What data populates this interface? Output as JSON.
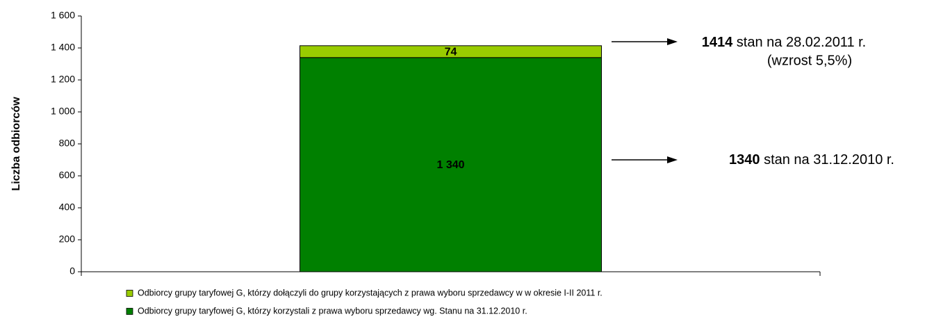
{
  "chart_data": {
    "type": "stacked_bar",
    "y_label": "Liczba odbiorców",
    "categories": [
      null
    ],
    "series": [
      {
        "name": "Odbiorcy grupy taryfowej G, którzy korzystali z prawa wyboru sprzedawcy wg. Stanu na 31.12.2010 r.",
        "color": "#008000",
        "values": [
          1340
        ],
        "value_labels": [
          "1 340"
        ]
      },
      {
        "name": "Odbiorcy grupy taryfowej G, którzy dołączyli do grupy korzystających z prawa wyboru sprzedawcy w w okresie I-II 2011 r.",
        "color": "#99cc00",
        "values": [
          74
        ]
      }
    ],
    "ylim": [
      0,
      1600
    ],
    "yticks": [
      0,
      200,
      400,
      600,
      800,
      {
        "value": 1000,
        "label": "1 000"
      },
      {
        "value": 1200,
        "label": "1 200"
      },
      {
        "value": 1400,
        "label": "1 400"
      },
      {
        "value": 1600,
        "label": "1 600"
      }
    ],
    "annotations": [
      {
        "bold": "1414",
        "text": "stan na 28.02.2011 r.",
        "note": "(wzrost 5,5%)"
      },
      {
        "bold": "1340",
        "text": "stan na 31.12.2010 r."
      }
    ],
    "legend": "bottom"
  }
}
